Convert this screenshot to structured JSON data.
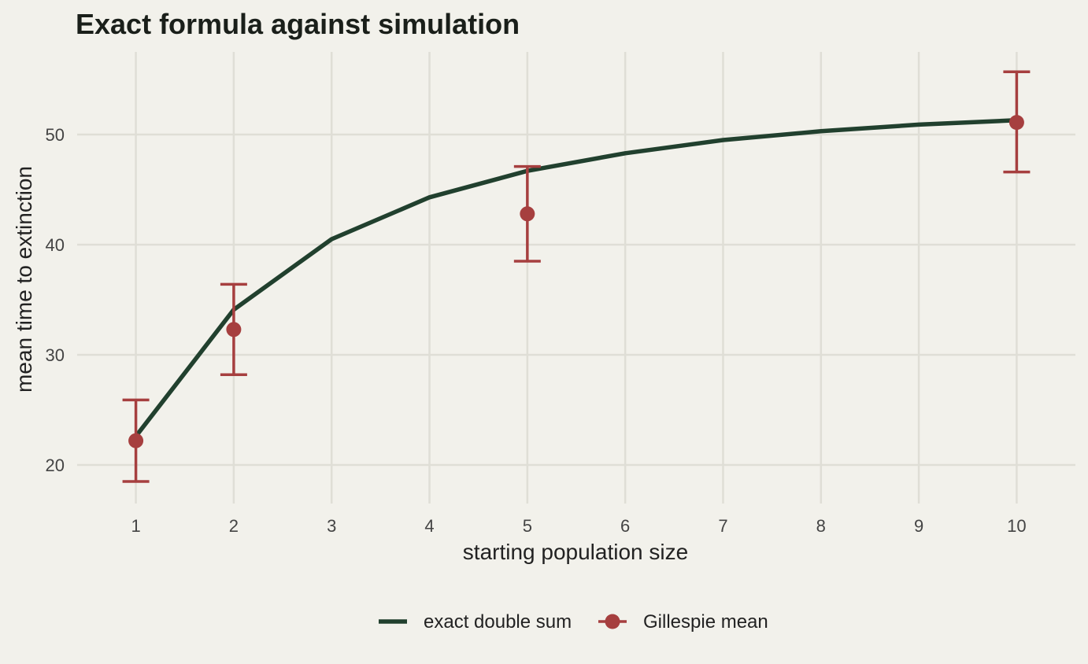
{
  "chart_data": {
    "type": "line",
    "title": "Exact formula against simulation",
    "xlabel": "starting population size",
    "ylabel": "mean time to extinction",
    "xlim": [
      0.4,
      10.6
    ],
    "ylim": [
      16.5,
      57.5
    ],
    "x_ticks": [
      1,
      2,
      3,
      4,
      5,
      6,
      7,
      8,
      9,
      10
    ],
    "y_ticks": [
      20,
      30,
      40,
      50
    ],
    "grid": true,
    "legend_position": "bottom",
    "series": [
      {
        "name": "exact double sum",
        "kind": "line",
        "color": "#21402e",
        "x": [
          1,
          2,
          3,
          4,
          5,
          6,
          7,
          8,
          9,
          10
        ],
        "y": [
          22.6,
          34.1,
          40.5,
          44.3,
          46.7,
          48.3,
          49.5,
          50.3,
          50.9,
          51.3
        ]
      },
      {
        "name": "Gillespie mean",
        "kind": "points_with_error_bars",
        "color": "#a63f3f",
        "x": [
          1,
          2,
          5,
          10
        ],
        "y": [
          22.2,
          32.3,
          42.8,
          51.1
        ],
        "lower": [
          18.5,
          28.2,
          38.5,
          46.6
        ],
        "upper": [
          25.9,
          36.4,
          47.1,
          55.7
        ]
      }
    ]
  }
}
